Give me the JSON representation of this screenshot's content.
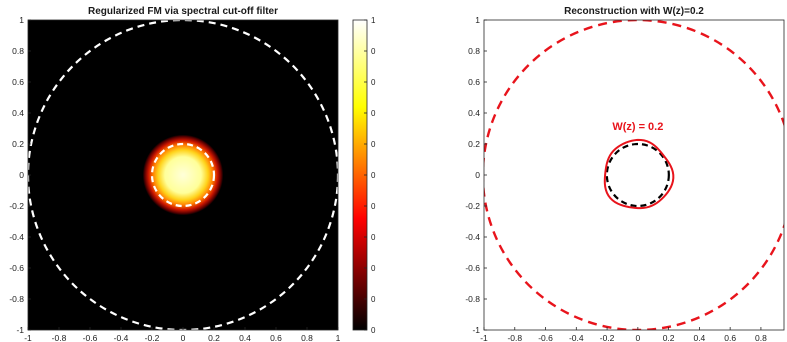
{
  "chart_data": [
    {
      "type": "heatmap",
      "title": "Regularized FM via spectral cut-off filter",
      "xlim": [
        -1,
        1
      ],
      "ylim": [
        -1,
        1
      ],
      "xticks": [
        "-1",
        "-0.8",
        "-0.6",
        "-0.4",
        "-0.2",
        "0",
        "0.2",
        "0.4",
        "0.6",
        "0.8",
        "1"
      ],
      "yticks": [
        "1",
        "0.8",
        "0.6",
        "0.4",
        "0.2",
        "0",
        "-0.2",
        "-0.4",
        "-0.6",
        "-0.8",
        "-1"
      ],
      "colormap": "hot",
      "background_value": 0,
      "blob": {
        "center": [
          0,
          0
        ],
        "radius": 0.26,
        "peak_value": 1
      },
      "circles": [
        {
          "name": "outer",
          "center": [
            0,
            0
          ],
          "radius": 1.0,
          "color": "#ffffff",
          "style": "dashed"
        },
        {
          "name": "inner",
          "center": [
            0,
            0
          ],
          "radius": 0.2,
          "color": "#ffffff",
          "style": "dashed"
        }
      ],
      "colorbar": {
        "ticks": [
          "1",
          "0",
          "0",
          "0",
          "0",
          "0",
          "0",
          "0",
          "0",
          "0",
          "0"
        ]
      }
    },
    {
      "type": "line",
      "title": "Reconstruction with W(z)=0.2",
      "xlim": [
        -1,
        0.95
      ],
      "ylim": [
        -1,
        1
      ],
      "xticks": [
        "-1",
        "-0.8",
        "-0.6",
        "-0.4",
        "-0.2",
        "0",
        "0.2",
        "0.4",
        "0.6",
        "0.8"
      ],
      "yticks": [
        "1",
        "0.8",
        "0.6",
        "0.4",
        "0.2",
        "0",
        "-0.2",
        "-0.4",
        "-0.6",
        "-0.8",
        "-1"
      ],
      "annotation": {
        "text": "W(z) = 0.2",
        "x": 0,
        "y": 0.29,
        "color": "#e8141c"
      },
      "series": [
        {
          "name": "outer-circle",
          "color": "#e8141c",
          "style": "dashed",
          "center": [
            0,
            0
          ],
          "radius": 1.0
        },
        {
          "name": "inner-circle",
          "color": "#000000",
          "style": "dashed",
          "center": [
            0,
            0
          ],
          "radius": 0.2
        },
        {
          "name": "contour",
          "color": "#e8141c",
          "style": "solid",
          "center": [
            0,
            0
          ],
          "radius": 0.22
        }
      ]
    }
  ]
}
